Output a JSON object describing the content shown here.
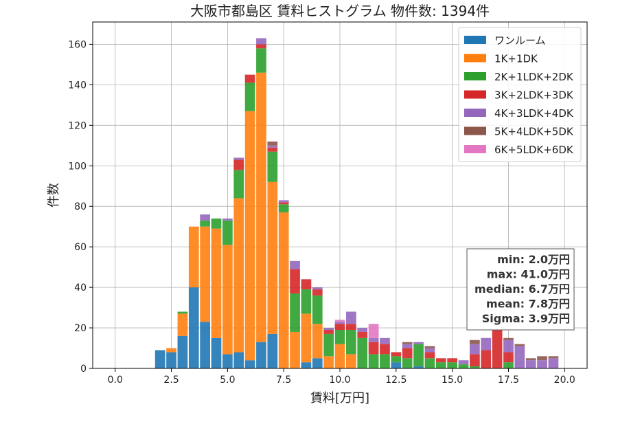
{
  "chart_data": {
    "type": "bar",
    "stacked": true,
    "title": "大阪市都島区 賃料ヒストグラム  物件数: 1394件",
    "xlabel": "賃料[万円]",
    "ylabel": "件数",
    "xlim": [
      -1.0,
      21.0
    ],
    "ylim": [
      0,
      171
    ],
    "xticks": [
      0.0,
      2.5,
      5.0,
      7.5,
      10.0,
      12.5,
      15.0,
      17.5,
      20.0
    ],
    "xtick_labels": [
      "0.0",
      "2.5",
      "5.0",
      "7.5",
      "10.0",
      "12.5",
      "15.0",
      "17.5",
      "20.0"
    ],
    "yticks": [
      0,
      20,
      40,
      60,
      80,
      100,
      120,
      140,
      160
    ],
    "ytick_labels": [
      "0",
      "20",
      "40",
      "60",
      "80",
      "100",
      "120",
      "140",
      "160"
    ],
    "grid": true,
    "legend_position": "top-right",
    "bin_width": 0.5,
    "x": [
      2.0,
      2.5,
      3.0,
      3.5,
      4.0,
      4.5,
      5.0,
      5.5,
      6.0,
      6.5,
      7.0,
      7.5,
      8.0,
      8.5,
      9.0,
      9.5,
      10.0,
      10.5,
      11.0,
      11.5,
      12.0,
      12.5,
      13.0,
      13.5,
      14.0,
      14.5,
      15.0,
      15.5,
      16.0,
      16.5,
      17.0,
      17.5,
      18.0,
      18.5,
      19.0,
      19.5
    ],
    "series": [
      {
        "name": "ワンルーム",
        "color": "#1f77b4",
        "values": [
          9,
          8,
          16,
          40,
          23,
          15,
          7,
          8,
          4,
          13,
          17,
          0,
          0,
          3,
          5,
          0,
          0,
          0,
          0,
          0,
          0,
          3,
          0,
          1,
          0,
          0,
          0,
          0,
          0,
          0,
          0,
          0,
          0,
          0,
          0,
          0
        ]
      },
      {
        "name": "1K+1DK",
        "color": "#ff7f0e",
        "values": [
          0,
          2,
          11,
          30,
          47,
          54,
          54,
          76,
          123,
          133,
          75,
          77,
          18,
          24,
          17,
          6,
          12,
          7,
          0,
          0,
          0,
          0,
          0,
          0,
          0,
          0,
          0,
          0,
          0,
          0,
          0,
          0,
          0,
          0,
          0,
          0
        ]
      },
      {
        "name": "2K+1LDK+2DK",
        "color": "#2ca02c",
        "values": [
          0,
          0,
          1,
          0,
          3,
          5,
          12,
          14,
          14,
          12,
          15,
          4,
          19,
          12,
          14,
          11,
          7,
          12,
          15,
          7,
          7,
          3,
          5,
          11,
          5,
          3,
          3,
          2,
          1,
          0,
          0,
          3,
          0,
          0,
          0,
          0
        ]
      },
      {
        "name": "3K+2LDK+3DK",
        "color": "#d62728",
        "values": [
          0,
          0,
          0,
          0,
          0,
          0,
          0,
          5,
          4,
          2,
          2,
          1,
          12,
          5,
          3,
          2,
          3,
          3,
          3,
          6,
          5,
          2,
          5,
          0,
          3,
          2,
          2,
          0,
          6,
          9,
          19,
          5,
          0,
          0,
          0,
          0
        ]
      },
      {
        "name": "4K+3LDK+4DK",
        "color": "#9467bd",
        "values": [
          0,
          0,
          0,
          0,
          3,
          0,
          1,
          1,
          0,
          3,
          1,
          1,
          4,
          0,
          1,
          1,
          1,
          6,
          2,
          2,
          3,
          0,
          2,
          1,
          2,
          0,
          0,
          2,
          5,
          6,
          0,
          6,
          11,
          4,
          4,
          5
        ]
      },
      {
        "name": "5K+4LDK+5DK",
        "color": "#8c564b",
        "values": [
          0,
          0,
          0,
          0,
          0,
          0,
          0,
          0,
          0,
          0,
          2,
          0,
          0,
          0,
          0,
          0,
          0,
          0,
          0,
          0,
          0,
          0,
          1,
          0,
          1,
          0,
          0,
          0,
          2,
          0,
          0,
          1,
          1,
          1,
          2,
          1
        ]
      },
      {
        "name": "6K+5LDK+6DK",
        "color": "#e377c2",
        "values": [
          0,
          0,
          0,
          0,
          0,
          0,
          0,
          0,
          0,
          0,
          0,
          0,
          0,
          0,
          0,
          0,
          1,
          0,
          0,
          7,
          0,
          0,
          0,
          0,
          0,
          0,
          0,
          0,
          0,
          0,
          0,
          0,
          0,
          0,
          0,
          0
        ]
      }
    ],
    "stats_box": {
      "lines": [
        "min: 2.0万円",
        "max: 41.0万円",
        "median: 6.7万円",
        "mean: 7.8万円",
        "Sigma: 3.9万円"
      ]
    }
  }
}
